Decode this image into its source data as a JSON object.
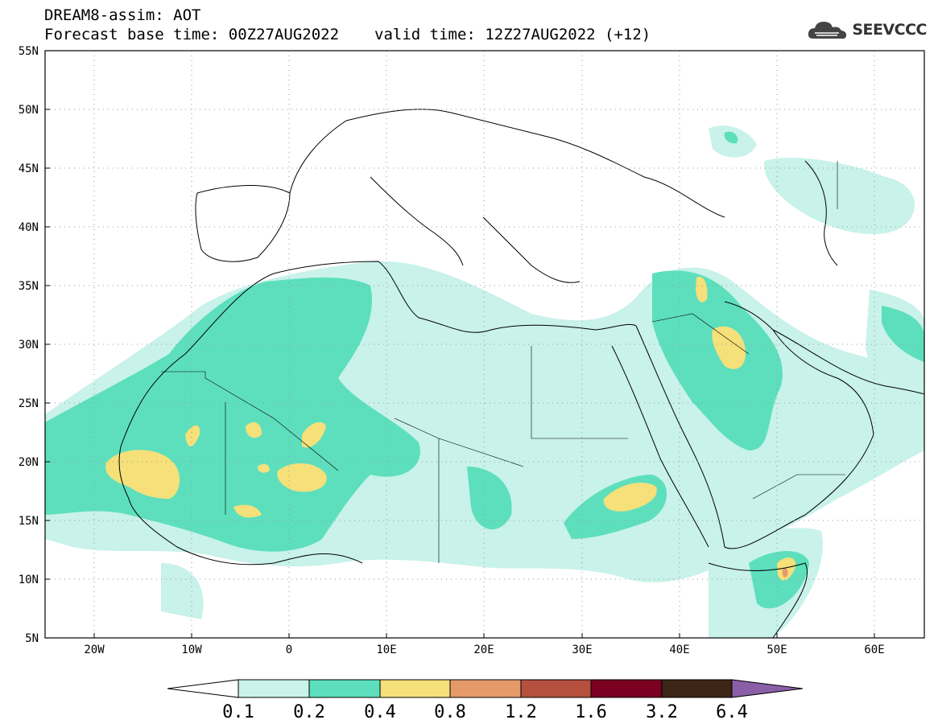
{
  "header": {
    "title": "DREAM8-assim: AOT",
    "base_time": "Forecast base time: 00Z27AUG2022",
    "valid_time": "valid time: 12Z27AUG2022 (+12)"
  },
  "logo": {
    "text": "SEEVCCC",
    "icon": "cloud-icon"
  },
  "map": {
    "lat_labels": [
      "55N",
      "50N",
      "45N",
      "40N",
      "35N",
      "30N",
      "25N",
      "20N",
      "15N",
      "10N",
      "5N"
    ],
    "lon_labels": [
      "20W",
      "10W",
      "0",
      "10E",
      "20E",
      "30E",
      "40E",
      "50E",
      "60E"
    ],
    "grid": "dotted",
    "colors": {
      "land_coast": "#000000",
      "background": "#ffffff"
    }
  },
  "colorbar": {
    "labels": [
      "0.1",
      "0.2",
      "0.4",
      "0.8",
      "1.2",
      "1.6",
      "3.2",
      "6.4"
    ],
    "colors": [
      "#ffffff",
      "#c8f2ea",
      "#5ddfbd",
      "#f5e07a",
      "#e69a6a",
      "#b5503f",
      "#7a0022",
      "#3d2616",
      "#8b5fa8"
    ]
  }
}
